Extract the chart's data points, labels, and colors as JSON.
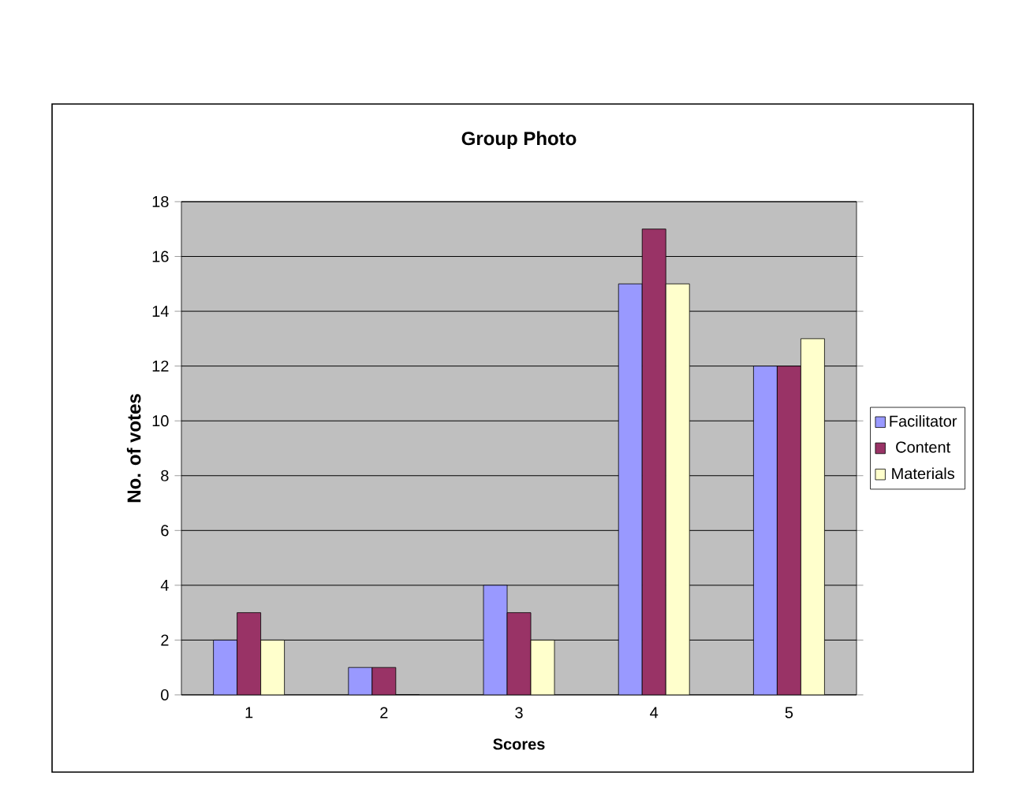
{
  "chart_data": {
    "type": "bar",
    "title": "Group Photo",
    "xlabel": "Scores",
    "ylabel": "No. of votes",
    "categories": [
      "1",
      "2",
      "3",
      "4",
      "5"
    ],
    "series": [
      {
        "name": "Facilitator",
        "color": "#9999ff",
        "values": [
          2,
          1,
          4,
          15,
          12
        ]
      },
      {
        "name": "Content",
        "color": "#993366",
        "values": [
          3,
          1,
          3,
          17,
          12
        ]
      },
      {
        "name": "Materials",
        "color": "#ffffcc",
        "values": [
          2,
          0,
          2,
          15,
          13
        ]
      }
    ],
    "ylim": [
      0,
      18
    ],
    "yticks": [
      0,
      2,
      4,
      6,
      8,
      10,
      12,
      14,
      16,
      18
    ],
    "grid": "y",
    "legend": "right"
  }
}
